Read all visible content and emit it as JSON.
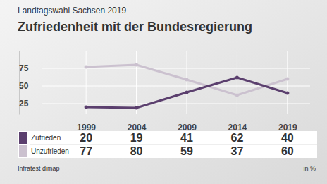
{
  "chart_data": {
    "type": "line",
    "subtitle": "Landtagswahl Sachsen 2019",
    "title": "Zufriedenheit mit der Bundesregierung",
    "categories": [
      "1999",
      "2004",
      "2009",
      "2014",
      "2019"
    ],
    "series": [
      {
        "name": "Zufrieden",
        "color": "#5b3f6e",
        "values": [
          20,
          19,
          41,
          62,
          40
        ]
      },
      {
        "name": "Unzufrieden",
        "color": "#cbc1cf",
        "values": [
          77,
          80,
          59,
          37,
          60
        ]
      }
    ],
    "ylim": [
      10,
      100
    ],
    "yticks": [
      25,
      50,
      75
    ],
    "grid": true,
    "data_labels": true,
    "source": "Infratest dimap",
    "unit": "in %"
  }
}
